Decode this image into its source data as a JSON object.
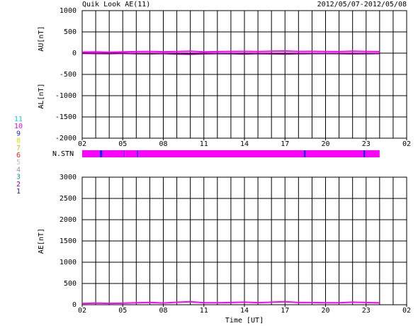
{
  "station_legend": {
    "labels": [
      "11",
      "10",
      "9",
      "8",
      "7",
      "6",
      "5",
      "4",
      "3",
      "2",
      "1"
    ],
    "colors": [
      "#00e0e0",
      "#ff00ff",
      "#2020ff",
      "#e0e000",
      "#a0e000",
      "#ff2020",
      "#c0c0c0",
      "#909090",
      "#00a0a0",
      "#a000a0",
      "#2020c0"
    ]
  },
  "chart_data": [
    {
      "type": "line",
      "title": "Quik Look AE(11)",
      "subtitle": "2012/05/07-2012/05/08",
      "ylabels": [
        "AU[nT]",
        "AL[nT]"
      ],
      "x": [
        2,
        3,
        4,
        5,
        6,
        7,
        8,
        9,
        10,
        11,
        12,
        13,
        14,
        15,
        16,
        17,
        18,
        19,
        20,
        21,
        22,
        23,
        24
      ],
      "series": [
        {
          "name": "AU",
          "color": "#ff00ff",
          "values": [
            25,
            28,
            22,
            30,
            35,
            40,
            32,
            38,
            45,
            30,
            35,
            40,
            42,
            38,
            45,
            50,
            40,
            42,
            38,
            35,
            45,
            40,
            35
          ]
        },
        {
          "name": "AL",
          "color": "#800080",
          "values": [
            -5,
            -8,
            -10,
            -5,
            -12,
            -15,
            -8,
            -20,
            -25,
            -15,
            -10,
            -12,
            -18,
            -10,
            -15,
            -20,
            -12,
            -10,
            -8,
            -10,
            -15,
            -12,
            -8
          ]
        }
      ],
      "xlim": [
        2,
        26
      ],
      "xticks": [
        {
          "value": 2,
          "label": "02"
        },
        {
          "value": 5,
          "label": "05"
        },
        {
          "value": 8,
          "label": "08"
        },
        11,
        14,
        17,
        20,
        23,
        {
          "value": 26,
          "label": "02"
        }
      ],
      "ylim": [
        -2000,
        1000
      ],
      "yticks": [
        1000,
        500,
        0,
        -500,
        -1000,
        -1500,
        -2000
      ]
    },
    {
      "type": "station",
      "ylabel": "N.STN",
      "segments": [
        {
          "start": 2,
          "end": 3.3,
          "value": 10
        },
        {
          "start": 3.3,
          "end": 3.5,
          "value": 9
        },
        {
          "start": 3.5,
          "end": 5.1,
          "value": 10
        },
        {
          "start": 5.1,
          "end": 5.15,
          "value": 9
        },
        {
          "start": 5.15,
          "end": 6.05,
          "value": 10
        },
        {
          "start": 6.05,
          "end": 6.15,
          "value": 9
        },
        {
          "start": 6.15,
          "end": 18.4,
          "value": 10
        },
        {
          "start": 18.4,
          "end": 18.55,
          "value": 9
        },
        {
          "start": 18.55,
          "end": 22.8,
          "value": 10
        },
        {
          "start": 22.8,
          "end": 22.95,
          "value": 9
        },
        {
          "start": 22.95,
          "end": 24,
          "value": 10
        }
      ],
      "xlim": [
        2,
        26
      ]
    },
    {
      "type": "line",
      "ylabels": [
        "AE[nT]"
      ],
      "xlabel": "Time [UT]",
      "x": [
        2,
        3,
        4,
        5,
        6,
        7,
        8,
        9,
        10,
        11,
        12,
        13,
        14,
        15,
        16,
        17,
        18,
        19,
        20,
        21,
        22,
        23,
        24
      ],
      "series": [
        {
          "name": "AE",
          "color": "#ff00ff",
          "values": [
            30,
            36,
            32,
            35,
            47,
            55,
            40,
            58,
            70,
            45,
            45,
            52,
            60,
            48,
            60,
            70,
            52,
            52,
            46,
            45,
            60,
            52,
            43
          ]
        }
      ],
      "xlim": [
        2,
        26
      ],
      "xticks": [
        {
          "value": 2,
          "label": "02"
        },
        {
          "value": 5,
          "label": "05"
        },
        {
          "value": 8,
          "label": "08"
        },
        11,
        14,
        17,
        20,
        23,
        {
          "value": 26,
          "label": "02"
        }
      ],
      "ylim": [
        0,
        3000
      ],
      "yticks": [
        3000,
        2500,
        2000,
        1500,
        1000,
        500,
        0
      ]
    }
  ]
}
